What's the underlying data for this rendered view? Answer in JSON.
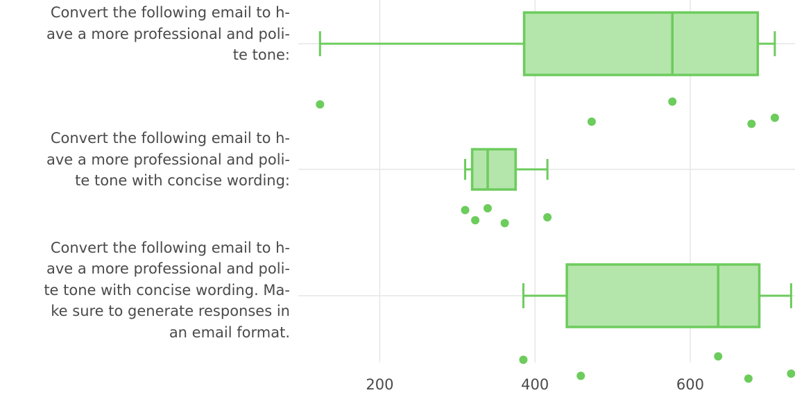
{
  "chart_data": {
    "type": "box",
    "orientation": "horizontal",
    "xlim": [
      95,
      735
    ],
    "xticks": [
      200,
      400,
      600
    ],
    "grid": true,
    "color": "#6ccc5c",
    "fill": "#b4e5ab",
    "categories": [
      {
        "label_lines": [
          "Convert the following email to h-",
          "ave a more professional and poli-",
          "te tone:"
        ],
        "whisker_low": 123,
        "q1": 386,
        "median": 577,
        "q3": 687,
        "whisker_high": 709,
        "points": [
          {
            "x": 123,
            "jitter": 0.58
          },
          {
            "x": 473,
            "jitter": 0.89
          },
          {
            "x": 577,
            "jitter": 0.53
          },
          {
            "x": 679,
            "jitter": 0.93
          },
          {
            "x": 709,
            "jitter": 0.82
          }
        ]
      },
      {
        "label_lines": [
          "Convert the following email to h-",
          "ave a more professional and poli-",
          "te tone with concise wording:"
        ],
        "whisker_low": 310,
        "q1": 319,
        "median": 339,
        "q3": 375,
        "whisker_high": 416,
        "points": [
          {
            "x": 310,
            "jitter": 0.57
          },
          {
            "x": 339,
            "jitter": 0.52
          },
          {
            "x": 323,
            "jitter": 0.85
          },
          {
            "x": 361,
            "jitter": 0.93
          },
          {
            "x": 416,
            "jitter": 0.77
          }
        ]
      },
      {
        "label_lines": [
          "Convert the following email to h-",
          "ave a more professional and poli-",
          "te tone with concise wording. Ma-",
          "ke sure to generate responses in",
          "an email format."
        ],
        "whisker_low": 385,
        "q1": 441,
        "median": 636,
        "q3": 689,
        "whisker_high": 730,
        "points": [
          {
            "x": 385,
            "jitter": 0.64
          },
          {
            "x": 459,
            "jitter": 0.93
          },
          {
            "x": 636,
            "jitter": 0.58
          },
          {
            "x": 675,
            "jitter": 0.98
          },
          {
            "x": 730,
            "jitter": 0.89
          }
        ]
      }
    ]
  }
}
